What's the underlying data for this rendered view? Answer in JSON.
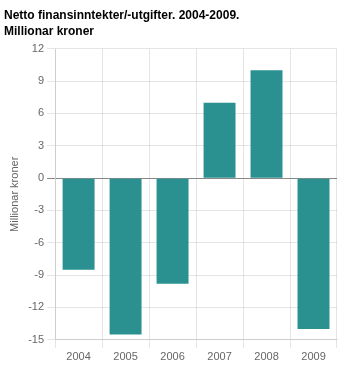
{
  "chart_data": {
    "type": "bar",
    "title": "Netto finansinntekter/-utgifter. 2004-2009.",
    "subtitle": "Millionar kroner",
    "ylabel": "Millionar kroner",
    "categories": [
      "2004",
      "2005",
      "2006",
      "2007",
      "2008",
      "2009"
    ],
    "values": [
      -8.5,
      -14.5,
      -9.8,
      7.0,
      10.0,
      -14.0
    ],
    "color": "#2a9090",
    "ylim": [
      -15,
      12
    ],
    "yticks": [
      -15,
      -12,
      -9,
      -6,
      -3,
      0,
      3,
      6,
      9,
      12
    ],
    "grid": true
  }
}
